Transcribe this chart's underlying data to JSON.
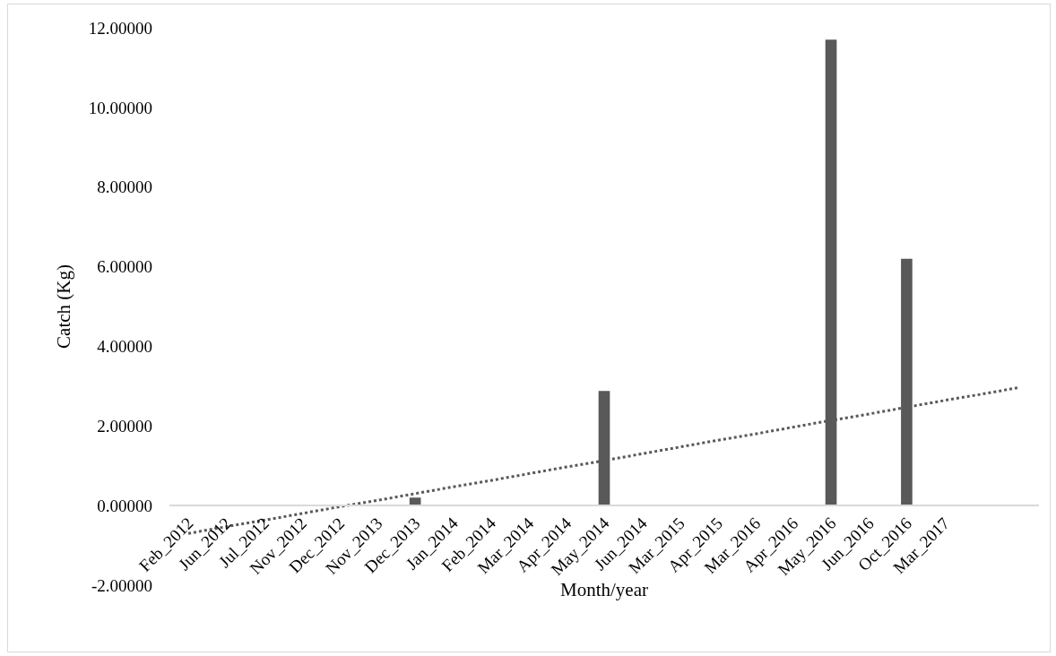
{
  "chart_data": {
    "type": "bar",
    "xlabel": "Month/year",
    "ylabel": "Catch (Kg)",
    "categories": [
      "Feb_2012",
      "Jun_2012",
      "Jul_2012",
      "Nov_2012",
      "Dec_2012",
      "Nov_2013",
      "Dec_2013",
      "Jan_2014",
      "Feb_2014",
      "Mar_2014",
      "Apr_2014",
      "May_2014",
      "Jun_2014",
      "Mar_2015",
      "Apr_2015",
      "Mar_2016",
      "Apr_2016",
      "May_2016",
      "Jun_2016",
      "Oct_2016",
      "Mar_2017",
      null,
      null
    ],
    "series": [
      {
        "color": "#595959",
        "values": [
          0,
          0,
          0,
          0,
          0,
          0,
          0.2,
          0,
          0,
          0,
          0,
          2.88,
          0,
          0,
          0,
          0,
          0,
          11.7,
          0,
          6.2,
          0,
          0,
          0
        ]
      },
      {
        "type": "line",
        "color": "#595959",
        "line_style": "dotted",
        "marker": "none",
        "values": [
          -0.7,
          -0.53,
          -0.37,
          -0.2,
          -0.03,
          0.13,
          0.3,
          0.47,
          0.63,
          0.8,
          0.97,
          1.13,
          1.3,
          1.47,
          1.64,
          1.8,
          1.97,
          2.14,
          2.3,
          2.47,
          2.64,
          2.8,
          2.97
        ]
      }
    ],
    "ylim": [
      -2,
      12
    ],
    "yticks": [
      {
        "value": -2,
        "label": "-2.00000"
      },
      {
        "value": 0,
        "label": "0.00000"
      },
      {
        "value": 2,
        "label": "2.00000"
      },
      {
        "value": 4,
        "label": "4.00000"
      },
      {
        "value": 6,
        "label": "6.00000"
      },
      {
        "value": 8,
        "label": "8.00000"
      },
      {
        "value": 10,
        "label": "10.00000"
      },
      {
        "value": 12,
        "label": "12.00000"
      }
    ],
    "grid": false
  }
}
